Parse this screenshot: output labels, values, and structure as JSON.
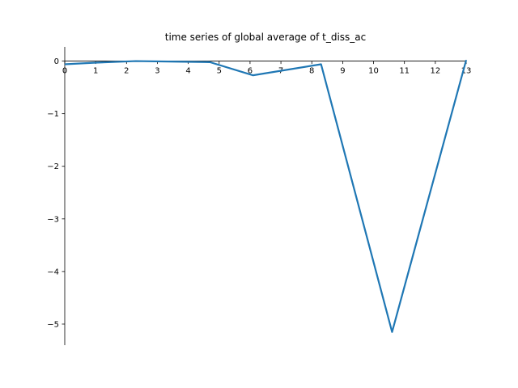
{
  "chart_data": {
    "type": "line",
    "title": "time series of global average of t_diss_ac",
    "xlabel": "",
    "ylabel": "",
    "xlim": [
      0,
      13
    ],
    "ylim": [
      -5.4,
      0.27
    ],
    "xticks": [
      0,
      1,
      2,
      3,
      4,
      5,
      6,
      7,
      8,
      9,
      10,
      11,
      12,
      13
    ],
    "yticks": [
      0,
      -1,
      -2,
      -3,
      -4,
      -5
    ],
    "ytick_labels": [
      "0",
      "−1",
      "−2",
      "−3",
      "−4",
      "−5"
    ],
    "grid": false,
    "spines": "centered at zero",
    "series": [
      {
        "color": "#1f77b4",
        "x": [
          0,
          1,
          2.3,
          3.6,
          4.7,
          6.1,
          8.3,
          10.6,
          13
        ],
        "y": [
          -0.06,
          -0.03,
          0.0,
          -0.01,
          -0.02,
          -0.27,
          -0.06,
          -5.15,
          0.02
        ]
      }
    ]
  }
}
